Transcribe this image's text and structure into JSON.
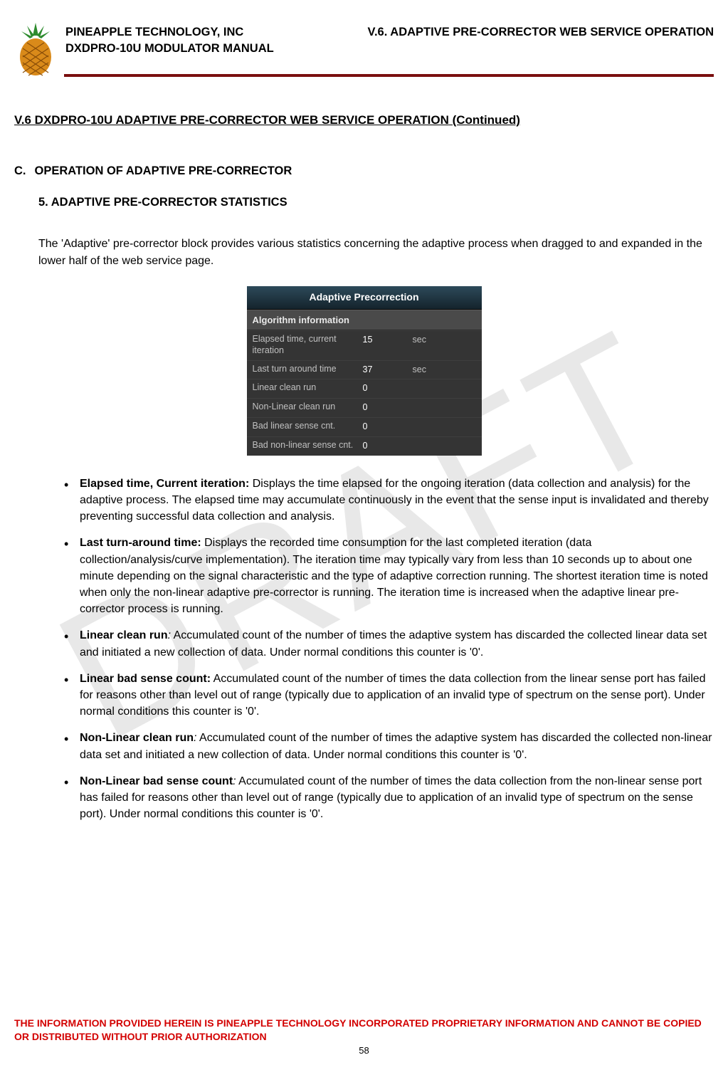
{
  "header": {
    "company": "PINEAPPLE TECHNOLOGY, INC",
    "manual": "DXDPRO-10U MODULATOR MANUAL",
    "section_ref": "V.6. ADAPTIVE PRE-CORRECTOR WEB SERVICE OPERATION",
    "rule_color": "#7a0f0f",
    "logo_colors": {
      "leaf": "#2e8b2e",
      "body": "#d98a1a",
      "segment": "#b06a0e"
    }
  },
  "watermark": "DRAFT",
  "section": {
    "title_main": "V.6  DXDPRO-10U ADAPTIVE PRE-CORRECTOR WEB SERVICE OPERATION",
    "title_suffix": " (Continued)",
    "sub_c_letter": "C.",
    "sub_c_text": "OPERATION OF ADAPTIVE PRE-CORRECTOR",
    "sub_5": "5. ADAPTIVE PRE-CORRECTOR STATISTICS",
    "intro": "The 'Adaptive' pre-corrector block provides various statistics concerning the adaptive process when dragged to and expanded in the lower half of the web service page."
  },
  "panel": {
    "title": "Adaptive Precorrection",
    "subtitle": "Algorithm information",
    "bg_color": "#343434",
    "title_bg_from": "#2d4a5a",
    "title_bg_to": "#14232c",
    "sub_bg": "#4a4a4a",
    "text_color": "#d8d8d8",
    "value_color": "#ffffff",
    "rows": [
      {
        "label": "Elapsed time, current iteration",
        "value": "15",
        "unit": "sec"
      },
      {
        "label": "Last turn around time",
        "value": "37",
        "unit": "sec"
      },
      {
        "label": "Linear clean run",
        "value": "0",
        "unit": ""
      },
      {
        "label": "Non-Linear clean run",
        "value": "0",
        "unit": ""
      },
      {
        "label": "Bad linear sense cnt.",
        "value": "0",
        "unit": ""
      },
      {
        "label": "Bad non-linear sense cnt.",
        "value": "0",
        "unit": ""
      }
    ]
  },
  "bullets": [
    {
      "bold": "Elapsed time, Current iteration:",
      "italic": false,
      "text": " Displays the time elapsed for the ongoing iteration (data collection and analysis) for the adaptive process. The elapsed time may accumulate continuously in the event that the sense input is invalidated and thereby preventing successful data collection and analysis."
    },
    {
      "bold": "Last turn-around time:",
      "italic": false,
      "text": " Displays the recorded time consumption for the last completed iteration (data collection/analysis/curve implementation). The iteration time may typically vary from less than 10 seconds up to about one minute depending on the signal characteristic and the type of adaptive correction running. The shortest iteration time is noted when only the non-linear adaptive pre-corrector is running. The iteration time is increased when the adaptive linear pre-corrector process is running."
    },
    {
      "bold": "Linear clean run",
      "italic": true,
      "colon": ":",
      "text": " Accumulated count of the number of times the adaptive system has discarded the collected linear data set and initiated a new collection of data. Under normal conditions this counter is '0'."
    },
    {
      "bold": "Linear bad sense count:",
      "italic": false,
      "text": " Accumulated count of the number of times the data collection from the linear sense port has failed for reasons other than level out of range (typically due to application of an invalid type of spectrum on the sense port). Under normal conditions this counter is '0'."
    },
    {
      "bold": "Non-Linear clean run",
      "italic": true,
      "colon": ":",
      "text": " Accumulated count of the number of times the adaptive system has discarded the collected non-linear data set and initiated a new collection of data. Under normal conditions this counter is '0'."
    },
    {
      "bold": "Non-Linear bad sense count",
      "italic": true,
      "colon": ":",
      "text": " Accumulated count of the number of times the data collection from the non-linear sense port has failed for reasons other than level out of range (typically due to application of an invalid type of spectrum on the sense port). Under normal conditions this counter is '0'."
    }
  ],
  "footer": {
    "warning": "THE INFORMATION PROVIDED HEREIN IS PINEAPPLE TECHNOLOGY INCORPORATED PROPRIETARY INFORMATION AND CANNOT BE COPIED OR DISTRIBUTED WITHOUT PRIOR AUTHORIZATION",
    "page": "58",
    "warning_color": "#d30000"
  }
}
